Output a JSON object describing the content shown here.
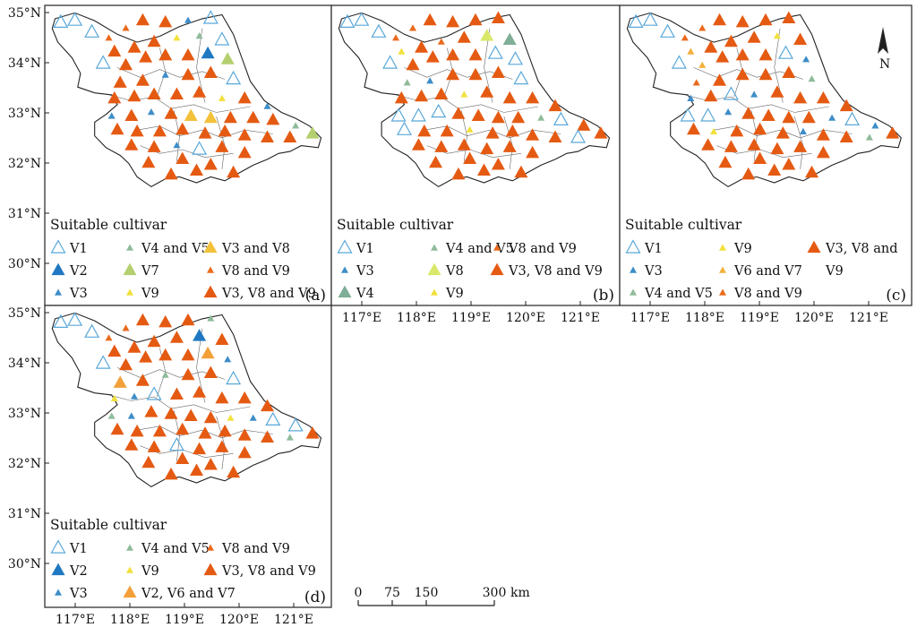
{
  "figure": {
    "lat_labels": [
      "35°N",
      "34°N",
      "33°N",
      "32°N",
      "31°N",
      "30°N"
    ],
    "lon_labels": [
      "117°E",
      "118°E",
      "119°E",
      "120°E",
      "121°E"
    ],
    "legend_title": "Suitable cultivar",
    "scalebar": {
      "ticks": [
        "0",
        "75",
        "150",
        "300"
      ],
      "unit": "km"
    },
    "colors": {
      "v1_outline": "#5aa8d9",
      "blue_dark": "#1f78c1",
      "blue_small": "#3d8dc8",
      "green_light": "#b4cf6e",
      "green_grey": "#8fbb9a",
      "yellow": "#f2e03c",
      "orange_light": "#f3a03a",
      "orange": "#ea6a1c",
      "orange_red": "#e55a12"
    }
  },
  "panels": [
    {
      "id": "a",
      "label": "(a)",
      "show_lat": true,
      "show_lon": false,
      "legend": [
        {
          "text": "V1",
          "symbol": "open-triangle",
          "color": "#5aa8d9",
          "size": "large"
        },
        {
          "text": "V2",
          "symbol": "triangle",
          "color": "#1f78c1",
          "size": "large"
        },
        {
          "text": "V3",
          "symbol": "triangle",
          "color": "#3d8dc8",
          "size": "small"
        },
        {
          "text": "V4 and V5",
          "symbol": "triangle",
          "color": "#8fbb9a",
          "size": "small"
        },
        {
          "text": "V7",
          "symbol": "triangle",
          "color": "#b4cf6e",
          "size": "large"
        },
        {
          "text": "V9",
          "symbol": "triangle",
          "color": "#f2e03c",
          "size": "small"
        },
        {
          "text": "V3 and V8",
          "symbol": "triangle",
          "color": "#f3c13a",
          "size": "large"
        },
        {
          "text": "V8 and V9",
          "symbol": "triangle",
          "color": "#ea6a1c",
          "size": "small"
        },
        {
          "text": "V3, V8 and V9",
          "symbol": "triangle",
          "color": "#e55a12",
          "size": "large"
        }
      ]
    },
    {
      "id": "b",
      "label": "(b)",
      "show_lat": false,
      "show_lon": true,
      "legend": [
        {
          "text": "V1",
          "symbol": "open-triangle",
          "color": "#5aa8d9",
          "size": "large"
        },
        {
          "text": "V3",
          "symbol": "triangle",
          "color": "#3d8dc8",
          "size": "small"
        },
        {
          "text": "V4",
          "symbol": "triangle",
          "color": "#7fae96",
          "size": "large"
        },
        {
          "text": "V4 and V5",
          "symbol": "triangle",
          "color": "#8fbb9a",
          "size": "small"
        },
        {
          "text": "V8",
          "symbol": "triangle",
          "color": "#d9e86a",
          "size": "large"
        },
        {
          "text": "V9",
          "symbol": "triangle",
          "color": "#f2e03c",
          "size": "small"
        },
        {
          "text": "V8 and V9",
          "symbol": "triangle",
          "color": "#ea6a1c",
          "size": "small"
        },
        {
          "text": "V3, V8 and V9",
          "symbol": "triangle",
          "color": "#e55a12",
          "size": "large"
        }
      ]
    },
    {
      "id": "c",
      "label": "(c)",
      "show_lat": false,
      "show_lon": true,
      "north_arrow": true,
      "legend": [
        {
          "text": "V1",
          "symbol": "open-triangle",
          "color": "#5aa8d9",
          "size": "large"
        },
        {
          "text": "V3",
          "symbol": "triangle",
          "color": "#3d8dc8",
          "size": "small"
        },
        {
          "text": "V4 and V5",
          "symbol": "triangle",
          "color": "#8fbb9a",
          "size": "small"
        },
        {
          "text": "V9",
          "symbol": "triangle",
          "color": "#f2e03c",
          "size": "small"
        },
        {
          "text": "V6 and V7",
          "symbol": "triangle",
          "color": "#f3b03a",
          "size": "small"
        },
        {
          "text": "V8 and V9",
          "symbol": "triangle",
          "color": "#ea6a1c",
          "size": "small"
        },
        {
          "text": "V3, V8 and",
          "symbol": "triangle",
          "color": "#e55a12",
          "size": "large"
        },
        {
          "text": "V9",
          "symbol": "none",
          "color": "",
          "size": ""
        }
      ]
    },
    {
      "id": "d",
      "label": "(d)",
      "show_lat": true,
      "show_lon": true,
      "legend": [
        {
          "text": "V1",
          "symbol": "open-triangle",
          "color": "#5aa8d9",
          "size": "large"
        },
        {
          "text": "V2",
          "symbol": "triangle",
          "color": "#1f78c1",
          "size": "large"
        },
        {
          "text": "V3",
          "symbol": "triangle",
          "color": "#3d8dc8",
          "size": "small"
        },
        {
          "text": "V4 and V5",
          "symbol": "triangle",
          "color": "#8fbb9a",
          "size": "small"
        },
        {
          "text": "V9",
          "symbol": "triangle",
          "color": "#f2e03c",
          "size": "small"
        },
        {
          "text": "V2, V6 and V7",
          "symbol": "triangle",
          "color": "#f3a03a",
          "size": "large"
        },
        {
          "text": "V8 and V9",
          "symbol": "triangle",
          "color": "#ea6a1c",
          "size": "small"
        },
        {
          "text": "V3, V8 and V9",
          "symbol": "triangle",
          "color": "#e55a12",
          "size": "large"
        }
      ]
    }
  ]
}
